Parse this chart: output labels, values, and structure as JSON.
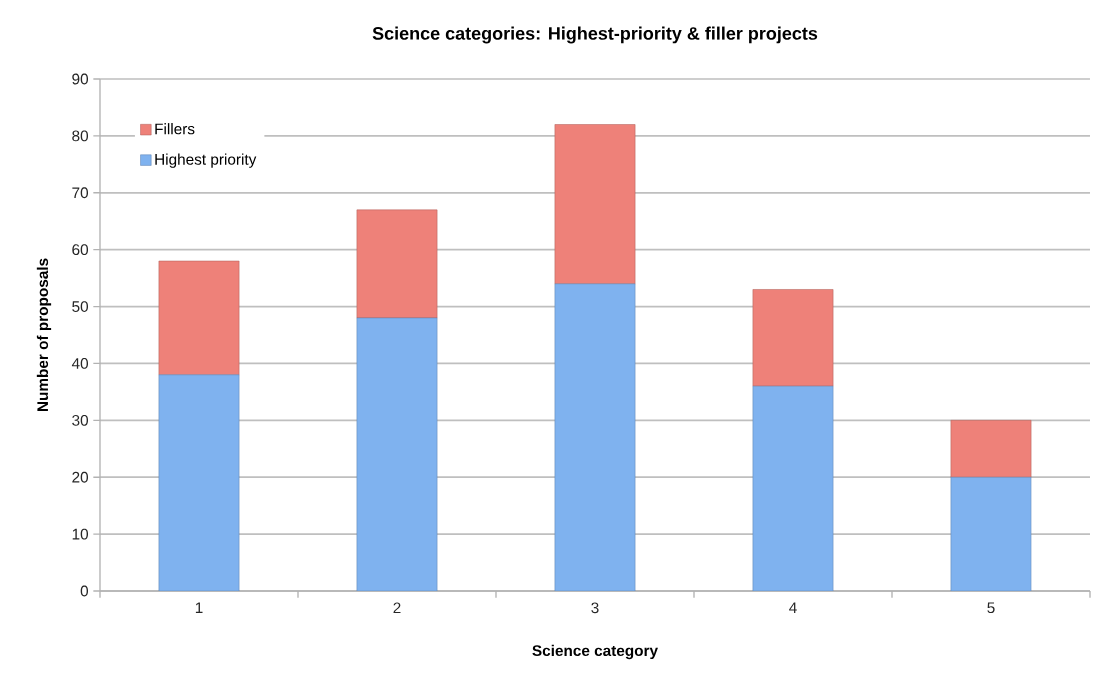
{
  "chart_data": {
    "type": "bar",
    "title": "Science categories: Highest-priority & filler projects",
    "xlabel": "Science category",
    "ylabel": "Number of proposals",
    "categories": [
      "1",
      "2",
      "3",
      "4",
      "5"
    ],
    "stacked": true,
    "series": [
      {
        "name": "Highest priority",
        "color": "#7fb2ef",
        "values": [
          38,
          48,
          54,
          36,
          20
        ]
      },
      {
        "name": "Fillers",
        "color": "#ee8179",
        "values": [
          20,
          19,
          28,
          17,
          10
        ]
      }
    ],
    "ylim": [
      0,
      90
    ],
    "yticks": [
      0,
      10,
      20,
      30,
      40,
      50,
      60,
      70,
      80,
      90
    ],
    "grid": "y",
    "legend": "top left"
  }
}
